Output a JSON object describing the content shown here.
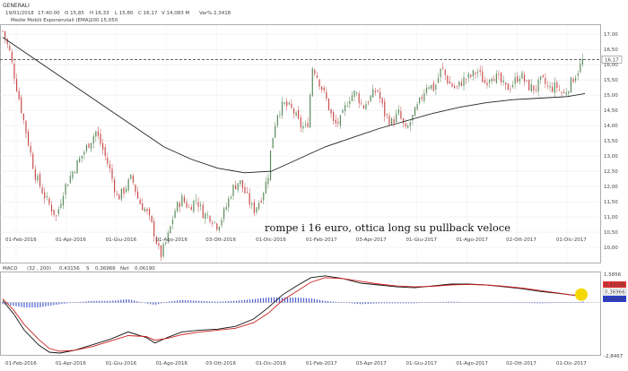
{
  "header": {
    "symbol": "GENERALI",
    "date": "19/01/2018",
    "time": "17:40.00",
    "open": "O 15,85",
    "high": "H 16,33",
    "low": "L 15,80",
    "close": "C 16,17",
    "volume": "V 14,083 M",
    "change": "Var% 2,3418",
    "ema_label": "Medie Mobili Esponenziali (EMA)",
    "ema_period": "200",
    "ema_value": "15,050"
  },
  "macd_header": {
    "label": "MACD",
    "params": "(32 , 200)",
    "macd_value": "0,43156",
    "signal_label": "S",
    "signal_value": "0,36966",
    "hist_label": "Net",
    "hist_value": "0,06190"
  },
  "annotation": "rompe i 16 euro, ottica long su pullback veloce",
  "colors": {
    "up": "#5a8a5a",
    "down": "#c84a4a",
    "ema": "#222222",
    "macd": "#111111",
    "signal": "#cc2222",
    "hist": "#4a5bd0",
    "highlight": "#f5d800",
    "price_tag": "#ffffff"
  },
  "chart_data": [
    {
      "type": "candlestick",
      "title": "GENERALI",
      "ylim": [
        9.5,
        17.3
      ],
      "yticks": [
        "17,00",
        "16,50",
        "16,00",
        "15,50",
        "15,00",
        "14,50",
        "14,00",
        "13,50",
        "13,00",
        "12,50",
        "12,00",
        "11,50",
        "11,00",
        "10,50",
        "10,00"
      ],
      "ytick_values": [
        17.0,
        16.5,
        16.0,
        15.5,
        15.0,
        14.5,
        14.0,
        13.5,
        13.0,
        12.5,
        12.0,
        11.5,
        11.0,
        10.5,
        10.0
      ],
      "x_labels": [
        "01-Feb-2016",
        "01-Apr-2016",
        "01-Giu-2016",
        "01-Ago-2016",
        "03-Ott-2016",
        "01-Dic-2016",
        "01-Feb-2017",
        "03-Apr-2017",
        "01-Giu-2017",
        "01-Ago-2017",
        "02-Ott-2017",
        "01-Dic-2017"
      ],
      "last_price": 16.17,
      "last_price_label": "16,17",
      "price_path": [
        [
          0,
          17.1
        ],
        [
          4,
          16.4
        ],
        [
          8,
          15.2
        ],
        [
          13,
          13.8
        ],
        [
          18,
          12.4
        ],
        [
          24,
          11.6
        ],
        [
          30,
          11.0
        ],
        [
          34,
          11.9
        ],
        [
          40,
          12.6
        ],
        [
          46,
          13.2
        ],
        [
          52,
          13.8
        ],
        [
          56,
          13.2
        ],
        [
          60,
          12.5
        ],
        [
          64,
          11.6
        ],
        [
          68,
          11.9
        ],
        [
          72,
          12.3
        ],
        [
          76,
          11.5
        ],
        [
          80,
          11.2
        ],
        [
          84,
          10.6
        ],
        [
          88,
          9.7
        ],
        [
          92,
          10.3
        ],
        [
          96,
          11.2
        ],
        [
          100,
          11.6
        ],
        [
          104,
          11.3
        ],
        [
          108,
          11.6
        ],
        [
          112,
          11.1
        ],
        [
          116,
          11.0
        ],
        [
          120,
          10.7
        ],
        [
          124,
          11.2
        ],
        [
          128,
          11.9
        ],
        [
          132,
          12.2
        ],
        [
          136,
          11.7
        ],
        [
          140,
          11.2
        ],
        [
          144,
          11.6
        ],
        [
          148,
          12.3
        ],
        [
          150,
          13.4
        ],
        [
          153,
          14.4
        ],
        [
          157,
          14.7
        ],
        [
          162,
          14.5
        ],
        [
          166,
          14.0
        ],
        [
          170,
          13.9
        ],
        [
          173,
          16.0
        ],
        [
          177,
          15.4
        ],
        [
          181,
          14.8
        ],
        [
          185,
          14.0
        ],
        [
          189,
          14.2
        ],
        [
          193,
          14.9
        ],
        [
          197,
          15.1
        ],
        [
          201,
          14.6
        ],
        [
          205,
          14.9
        ],
        [
          209,
          15.2
        ],
        [
          213,
          14.4
        ],
        [
          217,
          14.1
        ],
        [
          221,
          14.4
        ],
        [
          225,
          13.8
        ],
        [
          229,
          14.3
        ],
        [
          233,
          14.8
        ],
        [
          237,
          15.4
        ],
        [
          241,
          15.2
        ],
        [
          245,
          15.9
        ],
        [
          249,
          15.4
        ],
        [
          253,
          15.2
        ],
        [
          257,
          15.5
        ],
        [
          261,
          15.6
        ],
        [
          265,
          15.8
        ],
        [
          269,
          15.4
        ],
        [
          273,
          15.7
        ],
        [
          277,
          15.5
        ],
        [
          281,
          15.2
        ],
        [
          285,
          15.4
        ],
        [
          289,
          15.7
        ],
        [
          293,
          15.3
        ],
        [
          297,
          15.2
        ],
        [
          301,
          15.5
        ],
        [
          305,
          15.2
        ],
        [
          309,
          15.3
        ],
        [
          313,
          15.0
        ],
        [
          317,
          15.4
        ],
        [
          321,
          15.8
        ],
        [
          324,
          16.17
        ]
      ],
      "ema200": [
        [
          0,
          16.9
        ],
        [
          15,
          16.3
        ],
        [
          30,
          15.7
        ],
        [
          45,
          15.1
        ],
        [
          60,
          14.5
        ],
        [
          75,
          13.9
        ],
        [
          90,
          13.3
        ],
        [
          105,
          12.9
        ],
        [
          120,
          12.6
        ],
        [
          135,
          12.45
        ],
        [
          150,
          12.5
        ],
        [
          165,
          12.9
        ],
        [
          180,
          13.3
        ],
        [
          195,
          13.6
        ],
        [
          210,
          13.9
        ],
        [
          225,
          14.15
        ],
        [
          240,
          14.4
        ],
        [
          255,
          14.6
        ],
        [
          270,
          14.75
        ],
        [
          285,
          14.85
        ],
        [
          300,
          14.9
        ],
        [
          315,
          14.95
        ],
        [
          325,
          15.05
        ]
      ]
    },
    {
      "type": "line",
      "title": "MACD",
      "ylim": [
        -2.8467,
        1.5856
      ],
      "yticks": [
        "1,5856",
        "-2,8467"
      ],
      "ytick_values": [
        1.5856,
        -2.8467
      ],
      "x_labels": [
        "01-Feb-2016",
        "01-Apr-2016",
        "01-Giu-2016",
        "01-Ago-2016",
        "03-Ott-2016",
        "01-Dic-2016",
        "01-Feb-2017",
        "03-Apr-2017",
        "01-Giu-2017",
        "01-Ago-2017",
        "02-Ott-2017",
        "01-Dic-2017"
      ],
      "series": [
        {
          "name": "MACD",
          "points": [
            [
              0,
              0.1
            ],
            [
              6,
              -0.6
            ],
            [
              12,
              -1.5
            ],
            [
              20,
              -2.3
            ],
            [
              26,
              -2.7
            ],
            [
              32,
              -2.75
            ],
            [
              40,
              -2.6
            ],
            [
              50,
              -2.3
            ],
            [
              60,
              -2.0
            ],
            [
              70,
              -1.6
            ],
            [
              80,
              -1.9
            ],
            [
              85,
              -2.2
            ],
            [
              92,
              -1.9
            ],
            [
              100,
              -1.6
            ],
            [
              110,
              -1.5
            ],
            [
              120,
              -1.45
            ],
            [
              130,
              -1.3
            ],
            [
              140,
              -0.9
            ],
            [
              148,
              -0.3
            ],
            [
              156,
              0.4
            ],
            [
              164,
              0.9
            ],
            [
              172,
              1.35
            ],
            [
              180,
              1.45
            ],
            [
              190,
              1.3
            ],
            [
              200,
              1.05
            ],
            [
              210,
              0.95
            ],
            [
              220,
              0.85
            ],
            [
              230,
              0.8
            ],
            [
              240,
              0.9
            ],
            [
              250,
              1.0
            ],
            [
              260,
              1.0
            ],
            [
              270,
              0.95
            ],
            [
              280,
              0.85
            ],
            [
              290,
              0.75
            ],
            [
              300,
              0.6
            ],
            [
              310,
              0.5
            ],
            [
              318,
              0.4
            ],
            [
              325,
              0.43156
            ]
          ]
        },
        {
          "name": "S",
          "points": [
            [
              0,
              0.2
            ],
            [
              6,
              -0.4
            ],
            [
              12,
              -1.2
            ],
            [
              20,
              -2.0
            ],
            [
              26,
              -2.5
            ],
            [
              32,
              -2.65
            ],
            [
              40,
              -2.6
            ],
            [
              50,
              -2.4
            ],
            [
              60,
              -2.1
            ],
            [
              70,
              -1.8
            ],
            [
              80,
              -1.85
            ],
            [
              85,
              -2.05
            ],
            [
              92,
              -1.95
            ],
            [
              100,
              -1.75
            ],
            [
              110,
              -1.6
            ],
            [
              120,
              -1.5
            ],
            [
              130,
              -1.4
            ],
            [
              140,
              -1.1
            ],
            [
              148,
              -0.6
            ],
            [
              156,
              0.1
            ],
            [
              164,
              0.6
            ],
            [
              172,
              1.1
            ],
            [
              180,
              1.35
            ],
            [
              190,
              1.3
            ],
            [
              200,
              1.15
            ],
            [
              210,
              1.0
            ],
            [
              220,
              0.9
            ],
            [
              230,
              0.85
            ],
            [
              240,
              0.88
            ],
            [
              250,
              0.95
            ],
            [
              260,
              0.98
            ],
            [
              270,
              0.95
            ],
            [
              280,
              0.88
            ],
            [
              290,
              0.78
            ],
            [
              300,
              0.65
            ],
            [
              310,
              0.52
            ],
            [
              318,
              0.4
            ],
            [
              325,
              0.36966
            ]
          ]
        }
      ],
      "highlight_value": 0.43156
    }
  ]
}
